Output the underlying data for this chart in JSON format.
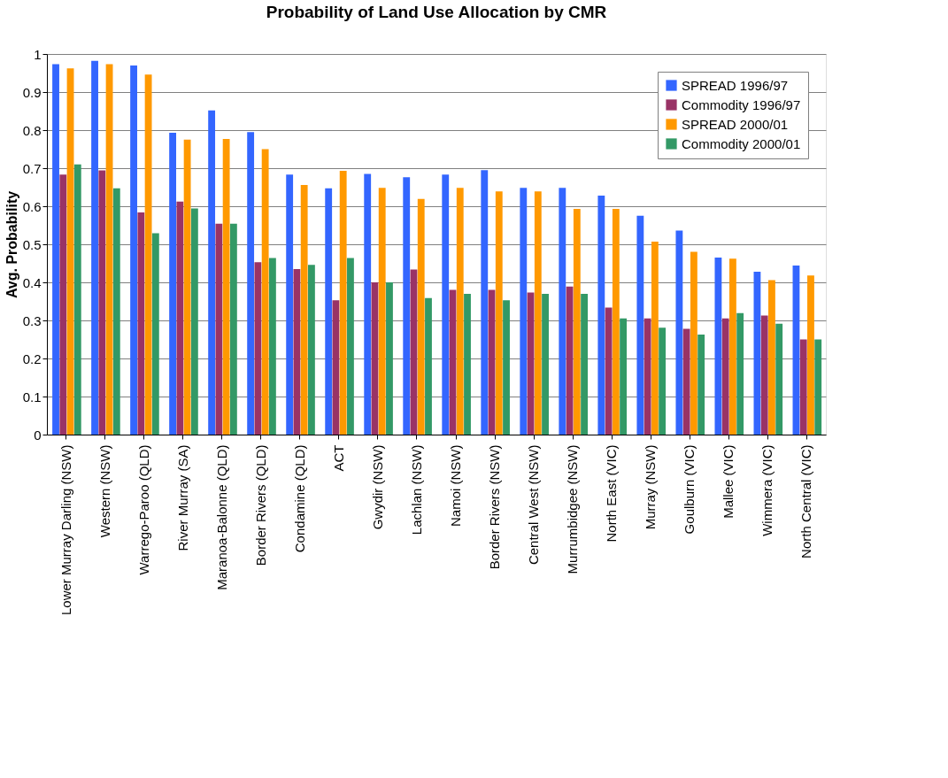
{
  "chart_data": {
    "type": "bar",
    "title": "Probability of Land Use Allocation by CMR",
    "ylabel": "Avg. Probability",
    "categories": [
      "Lower Murray Darling (NSW)",
      "Western (NSW)",
      "Warrego-Paroo (QLD)",
      "River Murray (SA)",
      "Maranoa-Balonne (QLD)",
      "Border Rivers (QLD)",
      "Condamine (QLD)",
      "ACT",
      "Gwydir (NSW)",
      "Lachlan (NSW)",
      "Namoi (NSW)",
      "Border Rivers (NSW)",
      "Central West (NSW)",
      "Murrumbidgee (NSW)",
      "North East (VIC)",
      "Murray (NSW)",
      "Goulburn (VIC)",
      "Mallee (VIC)",
      "Wimmera (VIC)",
      "North Central (VIC)"
    ],
    "series": [
      {
        "name": "SPREAD 1996/97",
        "color": "#3366ff",
        "values": [
          0.973,
          0.982,
          0.97,
          0.793,
          0.852,
          0.795,
          0.683,
          0.647,
          0.685,
          0.676,
          0.683,
          0.695,
          0.648,
          0.648,
          0.628,
          0.575,
          0.536,
          0.465,
          0.428,
          0.444
        ]
      },
      {
        "name": "Commodity 1996/97",
        "color": "#993366",
        "values": [
          0.683,
          0.694,
          0.584,
          0.612,
          0.554,
          0.453,
          0.435,
          0.353,
          0.4,
          0.434,
          0.38,
          0.38,
          0.373,
          0.389,
          0.334,
          0.305,
          0.278,
          0.305,
          0.313,
          0.25
        ]
      },
      {
        "name": "SPREAD 2000/01",
        "color": "#ff9900",
        "values": [
          0.962,
          0.973,
          0.946,
          0.775,
          0.777,
          0.75,
          0.656,
          0.693,
          0.648,
          0.619,
          0.648,
          0.639,
          0.639,
          0.593,
          0.593,
          0.507,
          0.48,
          0.462,
          0.406,
          0.418
        ]
      },
      {
        "name": "Commodity 2000/01",
        "color": "#339966",
        "values": [
          0.71,
          0.647,
          0.529,
          0.594,
          0.554,
          0.464,
          0.446,
          0.464,
          0.4,
          0.359,
          0.37,
          0.353,
          0.37,
          0.37,
          0.305,
          0.281,
          0.263,
          0.319,
          0.291,
          0.25
        ]
      }
    ],
    "ylim": [
      0,
      1
    ],
    "yticks": [
      0,
      0.1,
      0.2,
      0.3,
      0.4,
      0.5,
      0.6,
      0.7,
      0.8,
      0.9,
      1
    ],
    "grid": "y",
    "legend": "top right"
  }
}
